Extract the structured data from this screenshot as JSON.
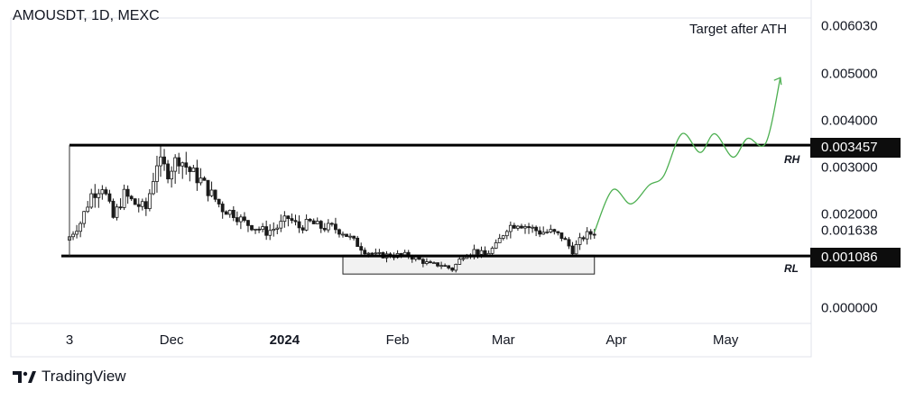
{
  "header": {
    "symbol": "AMOUSDT, 1D, MEXC"
  },
  "annotation": {
    "target": "Target after ATH"
  },
  "levels": {
    "rh_label": "RH",
    "rl_label": "RL",
    "rh_value": "0.003457",
    "rl_value": "0.001086"
  },
  "footer": {
    "brand": "TradingView"
  },
  "colors": {
    "candles": "#1a1a1a",
    "projection": "#4caf50",
    "level_line": "#000000",
    "badge_bg": "#0d0d0d"
  },
  "chart_data": {
    "type": "candlestick",
    "title": "AMOUSDT, 1D, MEXC",
    "ylim": [
      0,
      0.00603
    ],
    "y_ticks": [
      "0.006030",
      "0.005000",
      "0.004000",
      "0.003000",
      "0.002000",
      "0.001638",
      "0.000000"
    ],
    "x_ticks": [
      "3",
      "Dec",
      "2024",
      "Feb",
      "Mar",
      "Apr",
      "May"
    ],
    "x_tick_dates": [
      "2023-11-03",
      "2023-12-01",
      "2024-01-01",
      "2024-02-01",
      "2024-03-01",
      "2024-04-01",
      "2024-05-01"
    ],
    "resistance_level": 0.003457,
    "support_level": 0.001086,
    "accumulation_box": {
      "start": "2024-01-17",
      "end": "2024-03-26",
      "low": 0.0007,
      "high": 0.0011
    },
    "close_series": [
      [
        "2023-11-03",
        0.0015
      ],
      [
        "2023-11-06",
        0.0018
      ],
      [
        "2023-11-09",
        0.0024
      ],
      [
        "2023-11-12",
        0.0026
      ],
      [
        "2023-11-15",
        0.0019
      ],
      [
        "2023-11-18",
        0.0024
      ],
      [
        "2023-11-21",
        0.0022
      ],
      [
        "2023-11-24",
        0.0021
      ],
      [
        "2023-11-27",
        0.0031
      ],
      [
        "2023-11-30",
        0.0029
      ],
      [
        "2023-12-03",
        0.0032
      ],
      [
        "2023-12-06",
        0.0029
      ],
      [
        "2023-12-09",
        0.0027
      ],
      [
        "2023-12-12",
        0.0024
      ],
      [
        "2023-12-15",
        0.0021
      ],
      [
        "2023-12-18",
        0.002
      ],
      [
        "2023-12-21",
        0.0018
      ],
      [
        "2023-12-24",
        0.0017
      ],
      [
        "2023-12-27",
        0.0016
      ],
      [
        "2023-12-30",
        0.0017
      ],
      [
        "2024-01-02",
        0.0019
      ],
      [
        "2024-01-05",
        0.0017
      ],
      [
        "2024-01-08",
        0.0018
      ],
      [
        "2024-01-11",
        0.0017
      ],
      [
        "2024-01-14",
        0.0017
      ],
      [
        "2024-01-17",
        0.0016
      ],
      [
        "2024-01-20",
        0.0014
      ],
      [
        "2024-01-23",
        0.0012
      ],
      [
        "2024-01-26",
        0.0011
      ],
      [
        "2024-01-29",
        0.0011
      ],
      [
        "2024-02-01",
        0.0011
      ],
      [
        "2024-02-04",
        0.0011
      ],
      [
        "2024-02-07",
        0.001
      ],
      [
        "2024-02-10",
        0.0009
      ],
      [
        "2024-02-13",
        0.0009
      ],
      [
        "2024-02-16",
        0.0008
      ],
      [
        "2024-02-19",
        0.0011
      ],
      [
        "2024-02-22",
        0.0012
      ],
      [
        "2024-02-25",
        0.0011
      ],
      [
        "2024-02-28",
        0.0013
      ],
      [
        "2024-03-02",
        0.0017
      ],
      [
        "2024-03-05",
        0.0018
      ],
      [
        "2024-03-08",
        0.0017
      ],
      [
        "2024-03-11",
        0.0016
      ],
      [
        "2024-03-14",
        0.0016
      ],
      [
        "2024-03-17",
        0.0015
      ],
      [
        "2024-03-20",
        0.0012
      ],
      [
        "2024-03-23",
        0.0015
      ],
      [
        "2024-03-26",
        0.0016
      ]
    ],
    "projection_path": [
      [
        "2024-03-26",
        0.0016
      ],
      [
        "2024-03-31",
        0.0025
      ],
      [
        "2024-04-05",
        0.0022
      ],
      [
        "2024-04-10",
        0.0026
      ],
      [
        "2024-04-14",
        0.0028
      ],
      [
        "2024-04-19",
        0.0037
      ],
      [
        "2024-04-24",
        0.0033
      ],
      [
        "2024-04-28",
        0.0037
      ],
      [
        "2024-05-03",
        0.0032
      ],
      [
        "2024-05-07",
        0.0036
      ],
      [
        "2024-05-12",
        0.0035
      ],
      [
        "2024-05-16",
        0.0049
      ]
    ]
  }
}
